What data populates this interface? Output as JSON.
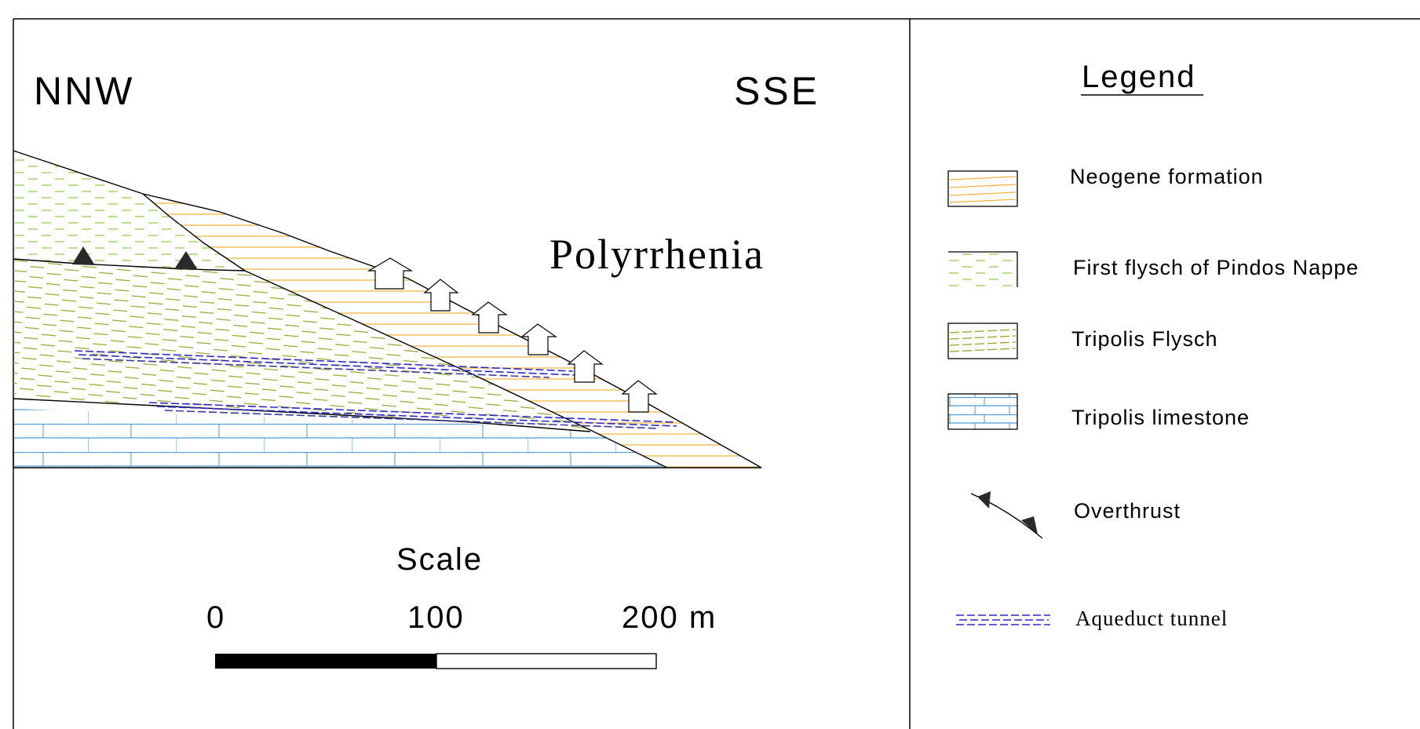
{
  "section": {
    "left_direction": "NNW",
    "right_direction": "SSE",
    "place_name": "Polyrrhenia"
  },
  "scale": {
    "title": "Scale",
    "tick_0": "0",
    "tick_1": "100",
    "tick_2": "200 m"
  },
  "legend": {
    "title": "Legend",
    "items": [
      {
        "label": "Neogene formation",
        "pattern": "orange-lines",
        "color": "#f0b43c"
      },
      {
        "label": "First flysch of Pindos Nappe",
        "pattern": "green-dashes",
        "color": "#8fd44a"
      },
      {
        "label": "Tripolis Flysch",
        "pattern": "olive-dashes",
        "color": "#9aa52a"
      },
      {
        "label": "Tripolis limestone",
        "pattern": "blue-bricks",
        "color": "#4a9ad8"
      },
      {
        "label": "Overthrust",
        "pattern": "thrust-line",
        "color": "#000000"
      },
      {
        "label": "Aqueduct tunnel",
        "pattern": "blue-dashes",
        "color": "#2a2ad0"
      }
    ]
  }
}
